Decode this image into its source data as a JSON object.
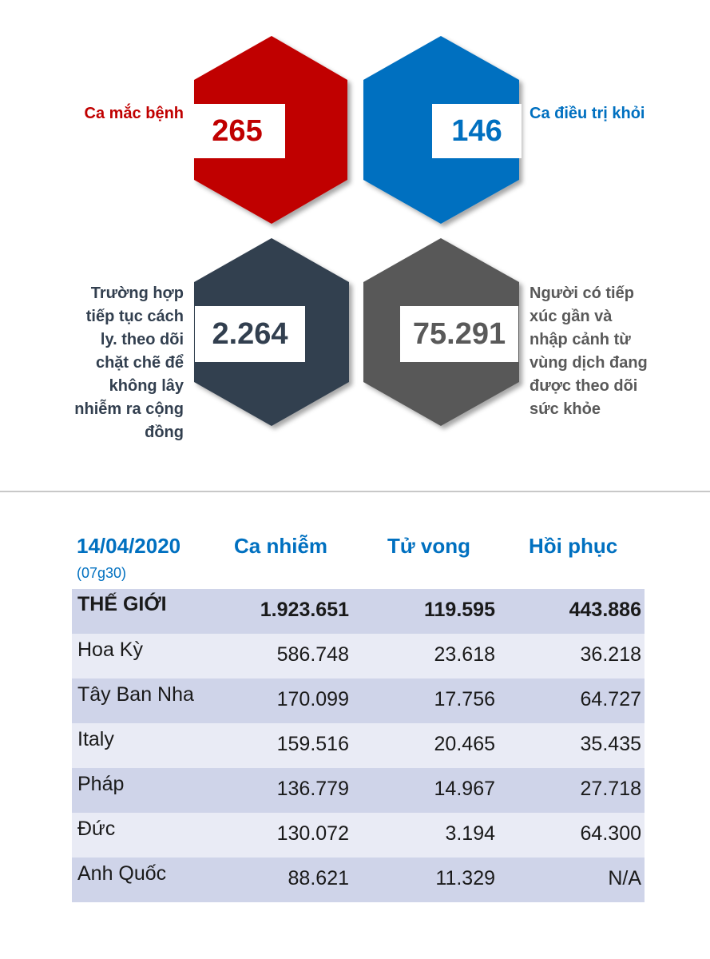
{
  "stats": {
    "cases": {
      "value": "265",
      "label": "Ca mắc bệnh",
      "color": "#c00000"
    },
    "recovered": {
      "value": "146",
      "label": "Ca điều trị khỏi",
      "color": "#0070c0"
    },
    "isolated": {
      "value": "2.264",
      "label_lines": [
        "Trường hợp",
        "tiếp tục cách",
        "ly. theo dõi",
        "chặt chẽ để",
        "không lây",
        "nhiễm ra cộng",
        "đồng"
      ],
      "color": "#323f4f"
    },
    "monitored": {
      "value": "75.291",
      "label_lines": [
        "Người có tiếp",
        "xúc gần và",
        "nhập cảnh từ",
        "vùng dịch đang",
        "được theo dõi",
        "sức khỏe"
      ],
      "color": "#595959"
    }
  },
  "table": {
    "date": "14/04/2020",
    "time": "(07g30)",
    "headers": [
      "Ca nhiễm",
      "Tử vong",
      "Hồi phục"
    ],
    "header_color": "#0070c0",
    "rows": [
      {
        "name": "THẾ GIỚI",
        "cases": "1.923.651",
        "deaths": "119.595",
        "recovered": "443.886"
      },
      {
        "name": "Hoa Kỳ",
        "cases": "586.748",
        "deaths": "23.618",
        "recovered": "36.218"
      },
      {
        "name": "Tây Ban Nha",
        "cases": "170.099",
        "deaths": "17.756",
        "recovered": "64.727"
      },
      {
        "name": "Italy",
        "cases": "159.516",
        "deaths": "20.465",
        "recovered": "35.435"
      },
      {
        "name": "Pháp",
        "cases": "136.779",
        "deaths": "14.967",
        "recovered": "27.718"
      },
      {
        "name": "Đức",
        "cases": "130.072",
        "deaths": "3.194",
        "recovered": "64.300"
      },
      {
        "name": "Anh Quốc",
        "cases": "88.621",
        "deaths": "11.329",
        "recovered": "N/A"
      }
    ]
  }
}
